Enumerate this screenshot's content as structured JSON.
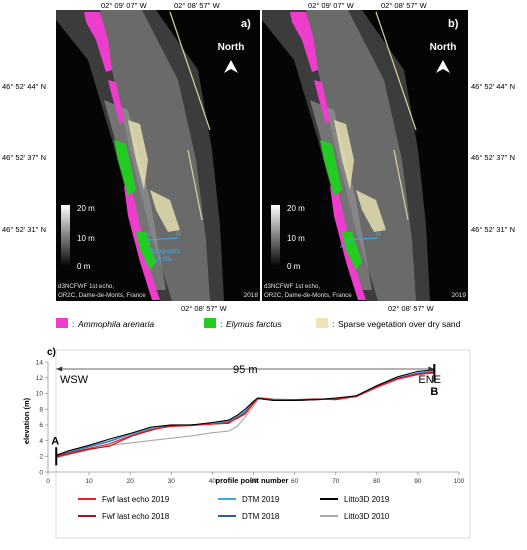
{
  "panels": [
    {
      "label": "a)",
      "year": "2018",
      "north": "North",
      "source_line1": "d3NCFWF 1st echo,",
      "source_line2": "OR2C, Dame-de-Monts, France",
      "lon_top": [
        "02° 09' 07'' W",
        "02° 08' 57'' W"
      ],
      "lon_bottom": [
        "02° 09' 07'' W",
        "02° 08' 57'' W"
      ]
    },
    {
      "label": "b)",
      "year": "2019",
      "north": "North",
      "source_line1": "d3NCFWF 1st echo,",
      "source_line2": "OR2C, Dame-de-Monts, France",
      "lon_top": [
        "02° 09' 07'' W",
        "02° 08' 57'' W"
      ],
      "lon_bottom": [
        "02° 09' 07'' W",
        "02° 08' 57'' W"
      ]
    }
  ],
  "latitudes": [
    "46° 52' 44'' N",
    "46° 52' 37'' N",
    "46° 52' 31'' N"
  ],
  "scalebar": {
    "top": "20 m",
    "mid": "10 m",
    "bottom": "0 m"
  },
  "profile_label": {
    "letter_a": "A",
    "letter_b": "B",
    "line1": "Topographic",
    "line2": "profile"
  },
  "vegetation_legend": [
    {
      "label": "Ammophila arenaria",
      "italic": true,
      "color": "#ee3ccc"
    },
    {
      "label": "Elymus farctus",
      "italic": true,
      "color": "#22cc22"
    },
    {
      "label": "Sparse vegetation over dry sand",
      "italic": false,
      "color": "#ede6b4"
    }
  ],
  "chart_data": {
    "type": "line",
    "panel_label": "c)",
    "xlabel": "profile point number",
    "ylabel": "elevation (m)",
    "xlim": [
      0,
      100
    ],
    "ylim": [
      0,
      14
    ],
    "xticks": [
      0,
      10,
      20,
      30,
      40,
      50,
      60,
      70,
      80,
      90,
      100
    ],
    "yticks": [
      0,
      2,
      4,
      6,
      8,
      10,
      12,
      14
    ],
    "grid": false,
    "annotations": {
      "distance": "95 m",
      "left": "WSW",
      "right": "ENE",
      "start": "A",
      "end": "B"
    },
    "x": [
      2,
      5,
      10,
      15,
      20,
      25,
      30,
      35,
      40,
      44,
      46,
      48,
      50,
      51,
      52,
      55,
      60,
      65,
      70,
      75,
      80,
      85,
      90,
      94
    ],
    "series": [
      {
        "name": "Fwf last echo 2019",
        "color": "#e8202a",
        "values": [
          2.0,
          2.4,
          3.0,
          3.6,
          4.6,
          5.4,
          5.8,
          5.9,
          6.1,
          6.3,
          6.8,
          7.4,
          8.7,
          9.3,
          9.4,
          9.2,
          9.1,
          9.2,
          9.3,
          9.6,
          10.8,
          11.8,
          12.4,
          12.6
        ]
      },
      {
        "name": "Fwf last echo 2018",
        "color": "#b0101a",
        "values": [
          1.9,
          2.3,
          2.9,
          3.3,
          4.5,
          5.3,
          5.9,
          6.0,
          6.1,
          6.2,
          6.9,
          7.5,
          8.8,
          9.4,
          9.4,
          9.2,
          9.2,
          9.3,
          9.2,
          9.6,
          10.9,
          11.9,
          12.5,
          12.7
        ]
      },
      {
        "name": "DTM   2019",
        "color": "#3aa8e0",
        "values": [
          2.2,
          2.6,
          3.3,
          4.0,
          4.8,
          5.5,
          5.8,
          6.0,
          6.2,
          6.5,
          7.0,
          7.8,
          8.9,
          9.3,
          9.3,
          9.1,
          9.1,
          9.2,
          9.3,
          9.7,
          10.9,
          12.0,
          12.6,
          12.8
        ]
      },
      {
        "name": "DTM   2018",
        "color": "#2a5ea8",
        "values": [
          2.1,
          2.5,
          3.2,
          3.9,
          4.8,
          5.5,
          5.9,
          6.0,
          6.2,
          6.4,
          7.0,
          7.7,
          8.9,
          9.3,
          9.3,
          9.1,
          9.1,
          9.2,
          9.3,
          9.6,
          10.8,
          11.9,
          12.6,
          12.8
        ]
      },
      {
        "name": "Litto3D   2019",
        "color": "#000000",
        "values": [
          2.1,
          2.7,
          3.4,
          4.2,
          4.9,
          5.7,
          6.0,
          6.0,
          6.3,
          6.6,
          7.2,
          8.0,
          9.0,
          9.4,
          9.3,
          9.1,
          9.1,
          9.2,
          9.4,
          9.7,
          11.0,
          12.1,
          12.8,
          13.0
        ]
      },
      {
        "name": "Litto3D   2010",
        "color": "#a8a8a8",
        "values": [
          1.8,
          2.2,
          2.8,
          3.4,
          3.7,
          4.0,
          4.3,
          4.6,
          5.0,
          5.2,
          5.8,
          7.0,
          8.4,
          9.2,
          9.4,
          9.3,
          9.2,
          9.2,
          9.3,
          9.6,
          10.7,
          11.8,
          12.5,
          12.7
        ]
      }
    ]
  }
}
